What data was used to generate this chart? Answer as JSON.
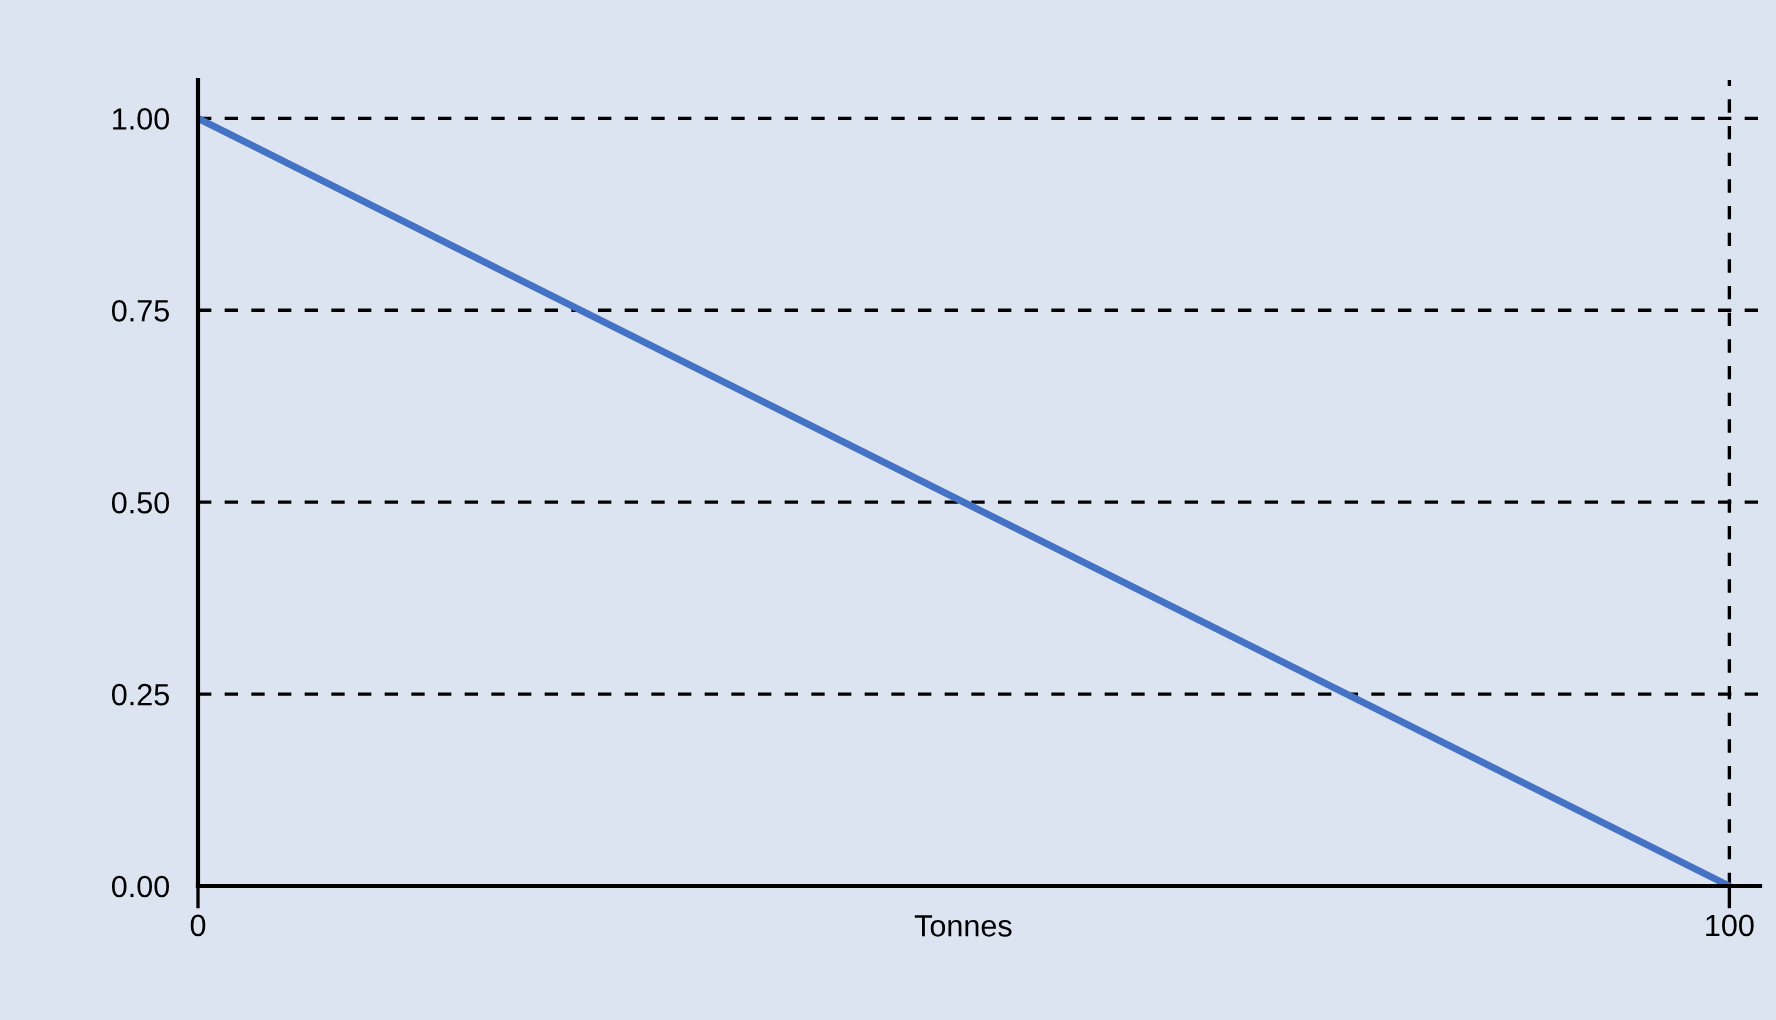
{
  "chart_data": {
    "type": "line",
    "xlabel": "Tonnes",
    "x": [
      0,
      100
    ],
    "series": [
      {
        "color": "#4472c4",
        "values": [
          1,
          0
        ]
      }
    ],
    "xlim": [
      0,
      102
    ],
    "ylim": [
      0,
      1.05
    ],
    "xticks": [
      0,
      100
    ],
    "yticks": [
      {
        "value": 0,
        "label": "0.00"
      },
      {
        "value": 0.25,
        "label": "0.25"
      },
      {
        "value": 0.5,
        "label": "0.50"
      },
      {
        "value": 0.75,
        "label": "0.75"
      },
      {
        "value": 1,
        "label": "1.00"
      }
    ],
    "grid": true,
    "line_style": "solid",
    "marker": "none"
  }
}
